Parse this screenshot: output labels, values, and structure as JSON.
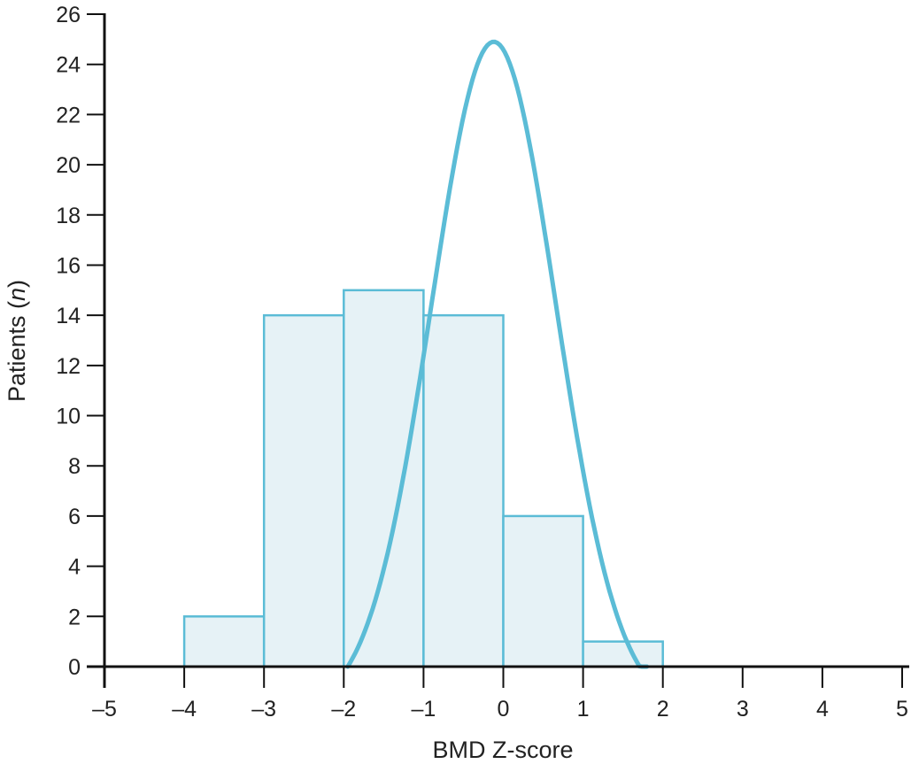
{
  "chart_data": {
    "type": "bar",
    "subtype": "histogram_with_normal_curve",
    "title": "",
    "xlabel": "BMD Z-score",
    "ylabel": "Patients (n)",
    "ylabel_parts": {
      "main": "Patients (",
      "italic": "n",
      "end": ")"
    },
    "xlim": [
      -5,
      5
    ],
    "ylim": [
      0,
      26
    ],
    "xticks": [
      -5,
      -4,
      -3,
      -2,
      -1,
      0,
      1,
      2,
      3,
      4,
      5
    ],
    "xtick_labels": [
      "–5",
      "–4",
      "–3",
      "–2",
      "–1",
      "0",
      "1",
      "2",
      "3",
      "4",
      "5"
    ],
    "yticks": [
      0,
      2,
      4,
      6,
      8,
      10,
      12,
      14,
      16,
      18,
      20,
      22,
      24,
      26
    ],
    "grid": false,
    "legend": null,
    "bins": [
      {
        "from": -4,
        "to": -3,
        "count": 2
      },
      {
        "from": -3,
        "to": -2,
        "count": 14
      },
      {
        "from": -2,
        "to": -1,
        "count": 15
      },
      {
        "from": -1,
        "to": 0,
        "count": 14
      },
      {
        "from": 0,
        "to": 1,
        "count": 6
      },
      {
        "from": 1,
        "to": 2,
        "count": 1
      }
    ],
    "categories": [
      "-4 to -3",
      "-3 to -2",
      "-2 to -1",
      "-1 to 0",
      "0 to 1",
      "1 to 2"
    ],
    "values": [
      2,
      14,
      15,
      14,
      6,
      1
    ],
    "curve": {
      "name": "Fitted distribution curve",
      "x_start": -1.95,
      "x_end": 1.8,
      "peak_x": -0.12,
      "peak_y": 24.9
    },
    "colors": {
      "bar_fill": "#e6f2f6",
      "bar_edge": "#5bbcd6",
      "curve": "#5bbcd6",
      "axis": "#111111",
      "text": "#222222"
    }
  }
}
